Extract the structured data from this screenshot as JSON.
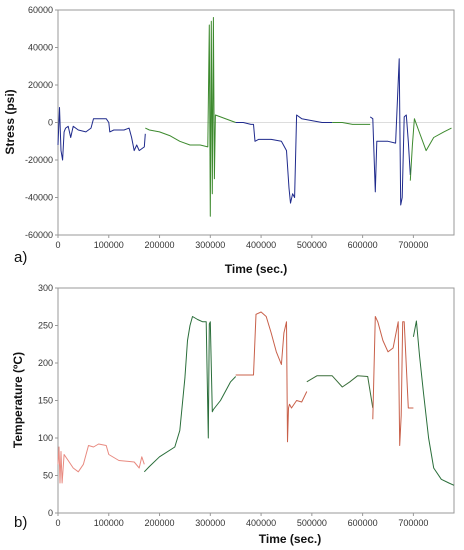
{
  "chart_data": [
    {
      "type": "line",
      "panel_label": "a)",
      "xlabel": "Time (sec.)",
      "ylabel": "Stress (psi)",
      "xlim": [
        0,
        780000
      ],
      "ylim": [
        -60000,
        60000
      ],
      "x_ticks": [
        0,
        100000,
        200000,
        300000,
        400000,
        500000,
        600000,
        700000
      ],
      "x_tick_labels": [
        "0",
        "100000",
        "200000",
        "300000",
        "400000",
        "500000",
        "600000",
        "700000"
      ],
      "y_ticks": [
        -60000,
        -40000,
        -20000,
        0,
        20000,
        40000,
        60000
      ],
      "y_tick_labels": [
        "-60000",
        "-40000",
        "-20000",
        "0",
        "20000",
        "40000",
        "60000"
      ],
      "grid": false,
      "series": [
        {
          "color": "#1f2a8c",
          "x": [
            0,
            3000,
            6000,
            9000,
            12000,
            15000,
            20000,
            25000,
            30000,
            40000,
            55000,
            65000,
            70000,
            80000,
            95000,
            100000,
            102000,
            110000,
            130000,
            140000,
            145000,
            150000,
            155000,
            160000,
            170000,
            172000
          ],
          "y": [
            -12000,
            8000,
            -15000,
            -20000,
            -5000,
            -3000,
            -2000,
            -8000,
            -2000,
            -4000,
            -5000,
            -3000,
            2000,
            2000,
            2000,
            0,
            -5000,
            -4000,
            -4000,
            -3000,
            -8000,
            -15000,
            -12000,
            -15000,
            -13000,
            -6000
          ]
        },
        {
          "color": "#3d8a2e",
          "x": [
            172000,
            180000,
            200000,
            220000,
            240000,
            260000,
            280000,
            295000,
            298000,
            300000,
            302000,
            304000,
            306000,
            308000,
            310000,
            320000,
            340000,
            350000
          ],
          "y": [
            -3000,
            -4000,
            -5000,
            -7000,
            -10000,
            -12000,
            -12000,
            -13000,
            52000,
            -50000,
            54000,
            -38000,
            56000,
            -30000,
            4000,
            3000,
            1000,
            0
          ]
        },
        {
          "color": "#1f2a8c",
          "x": [
            350000,
            365000,
            380000,
            385000,
            388000,
            395000,
            420000,
            440000,
            450000,
            455000,
            458000,
            462000,
            466000,
            470000,
            480000,
            500000,
            520000,
            540000
          ],
          "y": [
            0,
            0,
            -1000,
            -1000,
            -10000,
            -9000,
            -9000,
            -10000,
            -15000,
            -35000,
            -43000,
            -38000,
            -40000,
            4000,
            2000,
            1000,
            0,
            0
          ]
        },
        {
          "color": "#3d8a2e",
          "x": [
            540000,
            560000,
            580000,
            600000,
            615000
          ],
          "y": [
            0,
            0,
            -1000,
            -1000,
            -1000
          ]
        },
        {
          "color": "#1f2a8c",
          "x": [
            615000,
            620000,
            625000,
            628000,
            635000,
            650000,
            665000,
            672000,
            675000,
            678000,
            682000,
            686000,
            690000,
            694000
          ],
          "y": [
            3000,
            2000,
            -37000,
            -10000,
            -10000,
            -10000,
            -11000,
            34000,
            -44000,
            -40000,
            3000,
            4000,
            -10000,
            -28000
          ]
        },
        {
          "color": "#3d8a2e",
          "x": [
            694000,
            698000,
            702000,
            710000,
            725000,
            740000,
            760000,
            775000
          ],
          "y": [
            -31000,
            -12000,
            2000,
            -4000,
            -15000,
            -8000,
            -5000,
            -3000
          ]
        }
      ]
    },
    {
      "type": "line",
      "panel_label": "b)",
      "xlabel": "Time (sec.)",
      "ylabel": "Temperature (ºC)",
      "xlim": [
        0,
        780000
      ],
      "ylim": [
        0,
        300
      ],
      "x_ticks": [
        0,
        100000,
        200000,
        300000,
        400000,
        500000,
        600000,
        700000
      ],
      "x_tick_labels": [
        "0",
        "100000",
        "200000",
        "300000",
        "400000",
        "500000",
        "600000",
        "700000"
      ],
      "y_ticks": [
        0,
        50,
        100,
        150,
        200,
        250,
        300
      ],
      "y_tick_labels": [
        "0",
        "50",
        "100",
        "150",
        "200",
        "250",
        "300"
      ],
      "grid": false,
      "series": [
        {
          "color": "#e88a80",
          "x": [
            0,
            2000,
            4000,
            6000,
            8000,
            12000,
            20000,
            30000,
            40000,
            50000,
            60000,
            70000,
            80000,
            95000,
            100000,
            120000,
            150000,
            160000,
            165000,
            170000
          ],
          "y": [
            65,
            88,
            40,
            82,
            40,
            78,
            70,
            60,
            55,
            65,
            90,
            88,
            92,
            90,
            78,
            70,
            68,
            60,
            75,
            65
          ]
        },
        {
          "color": "#2a6e3a",
          "x": [
            170000,
            180000,
            200000,
            230000,
            240000,
            250000,
            255000,
            260000,
            265000,
            275000,
            285000,
            292000,
            296000,
            298000,
            300000,
            304000,
            306000,
            320000,
            340000,
            350000
          ],
          "y": [
            55,
            62,
            75,
            88,
            110,
            180,
            230,
            250,
            262,
            258,
            255,
            255,
            100,
            252,
            255,
            135,
            138,
            150,
            175,
            182
          ]
        },
        {
          "color": "#c8604a",
          "x": [
            350000,
            385000,
            390000,
            400000,
            410000,
            420000,
            430000,
            440000,
            445000,
            450000,
            452000,
            454000,
            456000,
            460000,
            470000,
            480000,
            490000
          ],
          "y": [
            184,
            184,
            265,
            268,
            262,
            240,
            215,
            198,
            240,
            255,
            95,
            140,
            145,
            140,
            150,
            148,
            162
          ]
        },
        {
          "color": "#3a6e3a",
          "x": [
            490000,
            510000,
            540000,
            560000,
            575000,
            590000,
            610000,
            620000
          ],
          "y": [
            175,
            183,
            183,
            168,
            175,
            183,
            182,
            140
          ]
        },
        {
          "color": "#c8604a",
          "x": [
            620000,
            625000,
            630000,
            640000,
            650000,
            660000,
            670000,
            673000,
            676000,
            679000,
            682000,
            690000,
            700000
          ],
          "y": [
            125,
            262,
            255,
            230,
            215,
            220,
            255,
            90,
            130,
            255,
            255,
            140,
            140
          ]
        },
        {
          "color": "#2a6e3a",
          "x": [
            700000,
            706000,
            712000,
            720000,
            730000,
            740000,
            755000,
            770000,
            780000
          ],
          "y": [
            235,
            256,
            210,
            160,
            100,
            60,
            45,
            40,
            37
          ]
        }
      ]
    }
  ]
}
